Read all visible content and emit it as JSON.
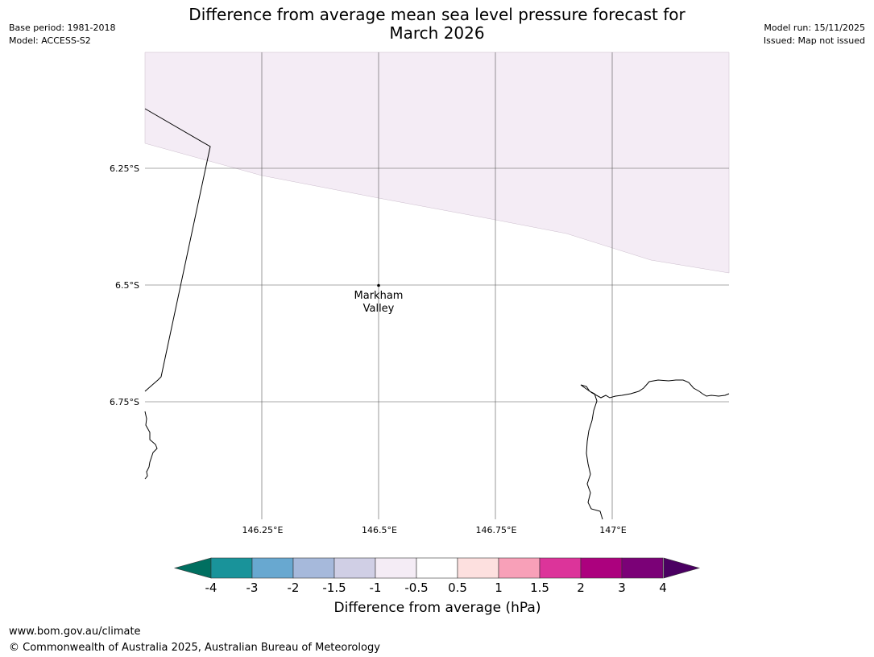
{
  "title": {
    "line1": "Difference from average mean sea level pressure forecast for",
    "line2": "March 2026"
  },
  "meta": {
    "base_period": "Base period: 1981-2018",
    "model": "Model: ACCESS-S2",
    "model_run": "Model run: 15/11/2025",
    "issued": "Issued: Map not issued"
  },
  "map": {
    "latitude_labels": [
      "6.25°S",
      "6.5°S",
      "6.75°S"
    ],
    "longitude_labels": [
      "146.25°E",
      "146.5°E",
      "146.75°E",
      "147°E"
    ],
    "place": {
      "name_line1": "Markham",
      "name_line2": "Valley"
    },
    "anomaly_fill_color": "#f4ecf5"
  },
  "colorbar": {
    "label": "Difference from average (hPa)",
    "ticks": [
      "-4",
      "-3",
      "-2",
      "-1.5",
      "-1",
      "-0.5",
      "0.5",
      "1",
      "1.5",
      "2",
      "3",
      "4"
    ],
    "colors": [
      "#19939a",
      "#68a8d0",
      "#a6b9db",
      "#d0cfe5",
      "#f4ecf5",
      "#ffffff",
      "#fde0df",
      "#f8a0b8",
      "#dc349a",
      "#ac017e",
      "#7b0177"
    ],
    "under_color": "#006f60",
    "over_color": "#4b0062"
  },
  "footer": {
    "url": "www.bom.gov.au/climate",
    "copyright": "© Commonwealth of Australia 2025, Australian Bureau of Meteorology"
  }
}
